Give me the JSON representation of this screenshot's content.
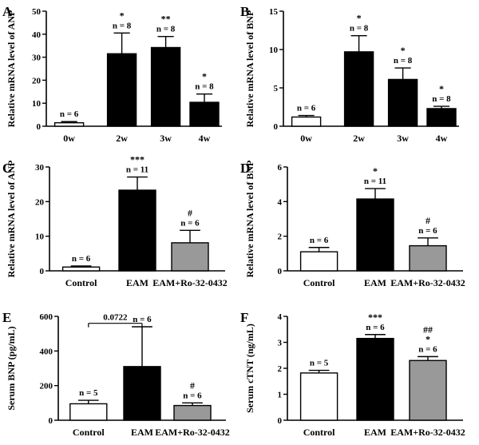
{
  "chart_data": [
    {
      "panel": "A",
      "type": "bar",
      "ylabel": "Relative mRNA level of ANP",
      "ylim": [
        0,
        50
      ],
      "yticks": [
        0,
        10,
        20,
        30,
        40,
        50
      ],
      "categories": [
        "0w",
        "2w",
        "3w",
        "4w"
      ],
      "values": [
        1.5,
        31.5,
        34.2,
        10.4
      ],
      "errors": [
        0.5,
        9.0,
        4.8,
        3.6
      ],
      "colors": [
        "#ffffff",
        "#000000",
        "#000000",
        "#000000"
      ],
      "n_labels": [
        "n = 6",
        "n = 8",
        "n = 8",
        "n = 8"
      ],
      "sig_labels": [
        [],
        [
          "*"
        ],
        [
          "**"
        ],
        [
          "*"
        ]
      ]
    },
    {
      "panel": "B",
      "type": "bar",
      "ylabel": "Relative mRNA level of BNP",
      "ylim": [
        0,
        15
      ],
      "yticks": [
        0,
        5,
        10,
        15
      ],
      "categories": [
        "0w",
        "2w",
        "3w",
        "4w"
      ],
      "values": [
        1.2,
        9.7,
        6.1,
        2.3
      ],
      "errors": [
        0.2,
        2.1,
        1.5,
        0.3
      ],
      "colors": [
        "#ffffff",
        "#000000",
        "#000000",
        "#000000"
      ],
      "n_labels": [
        "n = 6",
        "n = 8",
        "n = 8",
        "n = 8"
      ],
      "sig_labels": [
        [],
        [
          "*"
        ],
        [
          "*"
        ],
        [
          "*"
        ]
      ]
    },
    {
      "panel": "C",
      "type": "bar",
      "ylabel": "Relative mRNA level of ANP",
      "ylim": [
        0,
        30
      ],
      "yticks": [
        0,
        10,
        20,
        30
      ],
      "categories": [
        "Control",
        "EAM",
        "EAM+Ro-32-0432"
      ],
      "values": [
        1.1,
        23.3,
        8.1
      ],
      "errors": [
        0.3,
        3.8,
        3.6
      ],
      "colors": [
        "#ffffff",
        "#000000",
        "#999999"
      ],
      "n_labels": [
        "n = 6",
        "n = 11",
        "n = 6"
      ],
      "sig_labels": [
        [],
        [
          "***"
        ],
        [
          "#"
        ]
      ]
    },
    {
      "panel": "D",
      "type": "bar",
      "ylabel": "Relative mRNA level of BNP",
      "ylim": [
        0,
        6
      ],
      "yticks": [
        0,
        2,
        4,
        6
      ],
      "categories": [
        "Control",
        "EAM",
        "EAM+Ro-32-0432"
      ],
      "values": [
        1.1,
        4.15,
        1.45
      ],
      "errors": [
        0.25,
        0.6,
        0.45
      ],
      "colors": [
        "#ffffff",
        "#000000",
        "#999999"
      ],
      "n_labels": [
        "n = 6",
        "n = 11",
        "n = 6"
      ],
      "sig_labels": [
        [],
        [
          "*"
        ],
        [
          "#"
        ]
      ]
    },
    {
      "panel": "E",
      "type": "bar",
      "ylabel": "Serum BNP  (pg/mL)",
      "ylim": [
        0,
        600
      ],
      "yticks": [
        0,
        200,
        400,
        600
      ],
      "categories": [
        "Control",
        "EAM",
        "EAM+Ro-32-0432"
      ],
      "values": [
        95,
        310,
        85
      ],
      "errors": [
        20,
        230,
        15
      ],
      "colors": [
        "#ffffff",
        "#000000",
        "#999999"
      ],
      "n_labels": [
        "n = 5",
        "n = 6",
        "n = 6"
      ],
      "sig_labels": [
        [],
        [],
        [
          "#"
        ]
      ],
      "bracket": {
        "from": 0,
        "to": 1,
        "label": "0.0722",
        "y": 560
      }
    },
    {
      "panel": "F",
      "type": "bar",
      "ylabel": "Serum cTNT  (ng/mL)",
      "ylim": [
        0,
        4
      ],
      "yticks": [
        0,
        1,
        2,
        3,
        4
      ],
      "categories": [
        "Control",
        "EAM",
        "EAM+Ro-32-0432"
      ],
      "values": [
        1.82,
        3.15,
        2.3
      ],
      "errors": [
        0.1,
        0.15,
        0.15
      ],
      "colors": [
        "#ffffff",
        "#000000",
        "#999999"
      ],
      "n_labels": [
        "n = 5",
        "n = 6",
        "n = 6"
      ],
      "sig_labels": [
        [],
        [
          "***"
        ],
        [
          "##",
          "*"
        ]
      ]
    }
  ]
}
